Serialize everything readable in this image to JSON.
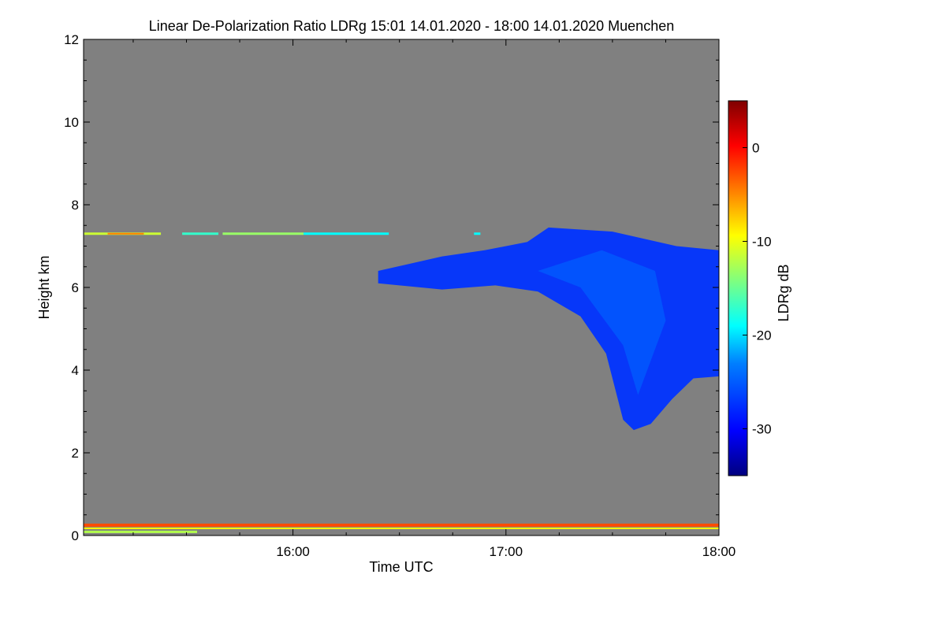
{
  "chart_data": {
    "type": "heatmap",
    "title": "Linear De-Polarization Ratio LDRg   15:01 14.01.2020 - 18:00 14.01.2020 Muenchen",
    "xlabel": "Time UTC",
    "ylabel": "Height km",
    "x_ticks": [
      "16:00",
      "17:00",
      "18:00"
    ],
    "x_tick_hours": [
      16,
      17,
      18
    ],
    "xlim_hours": [
      15.017,
      18.0
    ],
    "ylim": [
      0,
      12
    ],
    "y_ticks": [
      0,
      2,
      4,
      6,
      8,
      10,
      12
    ],
    "colorbar": {
      "label": "LDRg dB",
      "range": [
        -35,
        5
      ],
      "ticks": [
        0,
        -10,
        -20,
        -30
      ],
      "colormap": [
        "#00007f",
        "#0000ff",
        "#007fff",
        "#00ffff",
        "#7fff7f",
        "#ffff00",
        "#ff7f00",
        "#ff0000",
        "#7f0000"
      ]
    },
    "background_color": "#808080",
    "features": {
      "cloud_top_km": [
        {
          "t": 16.4,
          "h": 6.4
        },
        {
          "t": 16.7,
          "h": 6.75
        },
        {
          "t": 16.9,
          "h": 6.9
        },
        {
          "t": 17.1,
          "h": 7.1
        },
        {
          "t": 17.2,
          "h": 7.45
        },
        {
          "t": 17.5,
          "h": 7.35
        },
        {
          "t": 17.8,
          "h": 7.0
        },
        {
          "t": 18.0,
          "h": 6.9
        }
      ],
      "cloud_base_km": [
        {
          "t": 16.4,
          "h": 6.1
        },
        {
          "t": 16.7,
          "h": 5.95
        },
        {
          "t": 16.95,
          "h": 6.05
        },
        {
          "t": 17.15,
          "h": 5.9
        },
        {
          "t": 17.35,
          "h": 5.3
        },
        {
          "t": 17.47,
          "h": 4.4
        },
        {
          "t": 17.55,
          "h": 2.8
        },
        {
          "t": 17.6,
          "h": 2.55
        },
        {
          "t": 17.68,
          "h": 2.7
        },
        {
          "t": 17.78,
          "h": 3.3
        },
        {
          "t": 17.88,
          "h": 3.8
        },
        {
          "t": 18.0,
          "h": 3.85
        }
      ],
      "cloud_ldr_db": -28,
      "aerosol_layer_km": 7.3,
      "near_surface_layer_km": 0.25
    }
  }
}
